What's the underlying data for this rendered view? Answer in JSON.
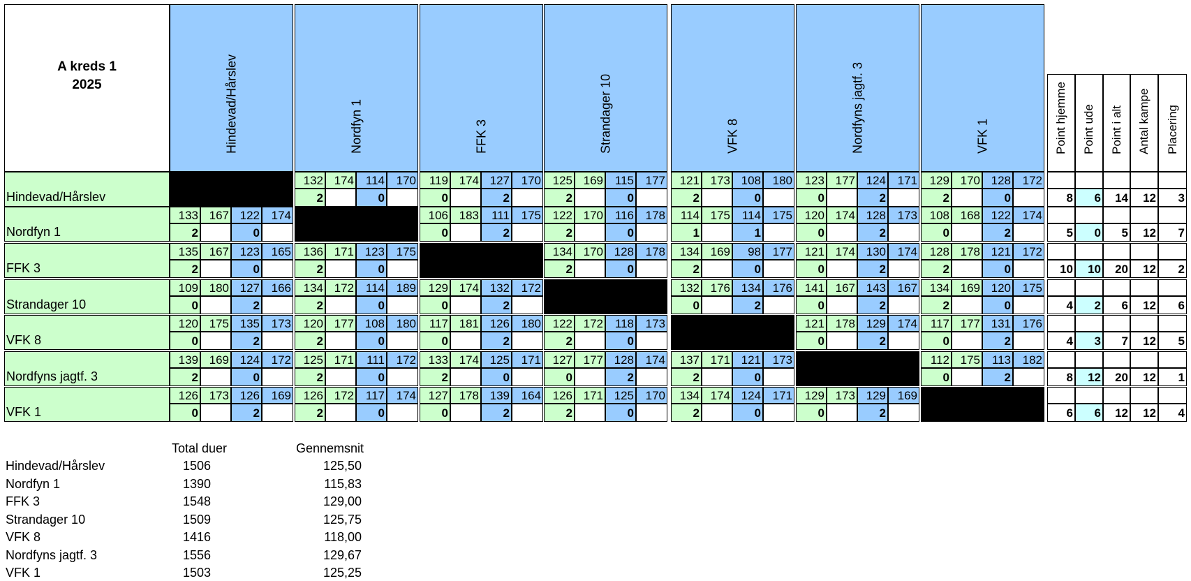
{
  "title": {
    "line1": "A kreds 1",
    "line2": "2025"
  },
  "teams": [
    "Hindevad/Hårslev",
    "Nordfyn 1",
    "FFK 3",
    "Strandager 10",
    "VFK 8",
    "Nordfyns jagtf. 3",
    "VFK 1"
  ],
  "stat_headers": [
    "Point hjemme",
    "Point ude",
    "Point i alt",
    "Antal kampe",
    "Placering"
  ],
  "matches": [
    [
      null,
      [
        132,
        174,
        114,
        170,
        "2",
        "0"
      ],
      [
        119,
        174,
        127,
        170,
        "0",
        "2"
      ],
      [
        125,
        169,
        115,
        177,
        "2",
        "0"
      ],
      [
        121,
        173,
        108,
        180,
        "2",
        "0"
      ],
      [
        123,
        177,
        124,
        171,
        "0",
        "2"
      ],
      [
        129,
        170,
        128,
        172,
        "2",
        "0"
      ]
    ],
    [
      [
        133,
        167,
        122,
        174,
        "2",
        "0"
      ],
      null,
      [
        106,
        183,
        111,
        175,
        "0",
        "2"
      ],
      [
        122,
        170,
        116,
        178,
        "2",
        "0"
      ],
      [
        114,
        175,
        114,
        175,
        "1",
        "1"
      ],
      [
        120,
        174,
        128,
        173,
        "0",
        "2"
      ],
      [
        108,
        168,
        122,
        174,
        "0",
        "2"
      ]
    ],
    [
      [
        135,
        167,
        123,
        165,
        "2",
        "0"
      ],
      [
        136,
        171,
        123,
        175,
        "2",
        "0"
      ],
      null,
      [
        134,
        170,
        128,
        178,
        "2",
        "0"
      ],
      [
        134,
        169,
        98,
        177,
        "2",
        "0"
      ],
      [
        121,
        174,
        130,
        174,
        "0",
        "2"
      ],
      [
        128,
        178,
        121,
        172,
        "2",
        "0"
      ]
    ],
    [
      [
        109,
        180,
        127,
        166,
        "0",
        "2"
      ],
      [
        134,
        172,
        114,
        189,
        "2",
        "0"
      ],
      [
        129,
        174,
        132,
        172,
        "0",
        "2"
      ],
      null,
      [
        132,
        176,
        134,
        176,
        "0",
        "2"
      ],
      [
        141,
        167,
        143,
        167,
        "0",
        "2"
      ],
      [
        134,
        169,
        120,
        175,
        "2",
        "0"
      ]
    ],
    [
      [
        120,
        175,
        135,
        173,
        "0",
        "2"
      ],
      [
        120,
        177,
        108,
        180,
        "2",
        "0"
      ],
      [
        117,
        181,
        126,
        180,
        "0",
        "2"
      ],
      [
        122,
        172,
        118,
        173,
        "2",
        "0"
      ],
      null,
      [
        121,
        178,
        129,
        174,
        "0",
        "2"
      ],
      [
        117,
        177,
        131,
        176,
        "0",
        "2"
      ]
    ],
    [
      [
        139,
        169,
        124,
        172,
        "2",
        "0"
      ],
      [
        125,
        171,
        111,
        172,
        "2",
        "0"
      ],
      [
        133,
        174,
        125,
        171,
        "2",
        "0"
      ],
      [
        127,
        177,
        128,
        174,
        "0",
        "2"
      ],
      [
        137,
        171,
        121,
        173,
        "2",
        "0"
      ],
      null,
      [
        112,
        175,
        113,
        182,
        "0",
        "2"
      ]
    ],
    [
      [
        126,
        173,
        126,
        169,
        "0",
        "2"
      ],
      [
        126,
        172,
        117,
        174,
        "2",
        "0"
      ],
      [
        127,
        178,
        139,
        164,
        "0",
        "2"
      ],
      [
        126,
        171,
        125,
        170,
        "2",
        "0"
      ],
      [
        134,
        174,
        124,
        171,
        "2",
        "0"
      ],
      [
        129,
        173,
        129,
        169,
        "0",
        "2"
      ],
      null
    ]
  ],
  "stats": [
    [
      8,
      6,
      14,
      12,
      3
    ],
    [
      5,
      0,
      5,
      12,
      7
    ],
    [
      10,
      10,
      20,
      12,
      2
    ],
    [
      4,
      2,
      6,
      12,
      6
    ],
    [
      4,
      3,
      7,
      12,
      5
    ],
    [
      8,
      12,
      20,
      12,
      1
    ],
    [
      6,
      6,
      12,
      12,
      4
    ]
  ],
  "summary": {
    "header_total": "Total duer",
    "header_avg": "Gennemsnit",
    "rows": [
      {
        "name": "Hindevad/Hårslev",
        "total": "1506",
        "avg": "125,50"
      },
      {
        "name": "Nordfyn 1",
        "total": "1390",
        "avg": "115,83"
      },
      {
        "name": "FFK 3",
        "total": "1548",
        "avg": "129,00"
      },
      {
        "name": "Strandager 10",
        "total": "1509",
        "avg": "125,75"
      },
      {
        "name": "VFK 8",
        "total": "1416",
        "avg": "118,00"
      },
      {
        "name": "Nordfyns jagtf. 3",
        "total": "1556",
        "avg": "129,67"
      },
      {
        "name": "VFK 1",
        "total": "1503",
        "avg": "125,25"
      }
    ]
  },
  "colors": {
    "home": "#ccffcc",
    "away": "#99ccff",
    "header": "#99ccff",
    "point_ude": "#ccffff",
    "blocked": "#000000"
  }
}
